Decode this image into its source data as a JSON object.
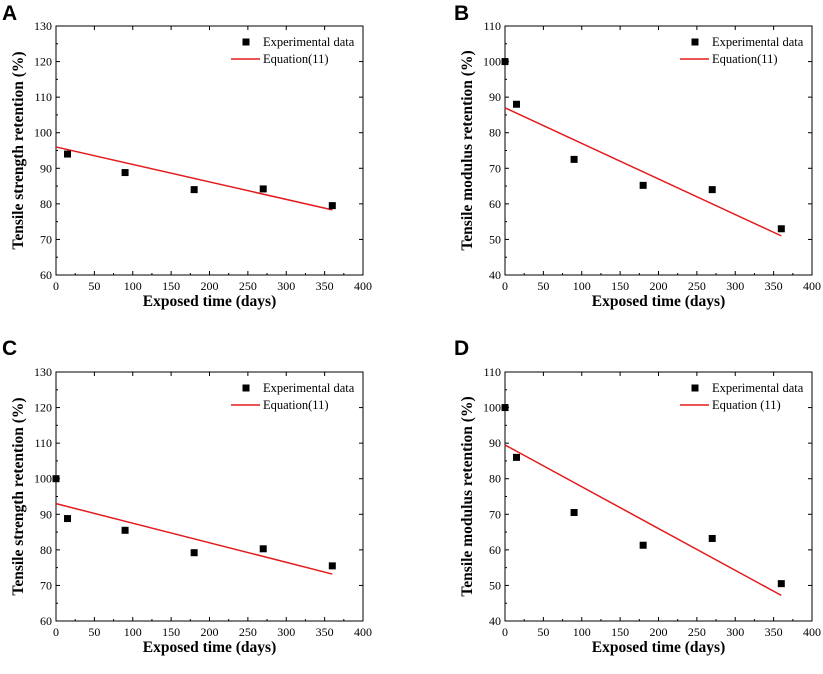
{
  "colors": {
    "fit": "#e41a1c",
    "marker": "#000000",
    "axes": "#000000"
  },
  "chart_data": [
    {
      "panel": "A",
      "type": "scatter",
      "xlabel": "Exposed time (days)",
      "ylabel": "Tensile strength retention (%)",
      "xlim": [
        0,
        400
      ],
      "ylim": [
        60,
        130
      ],
      "xticks": [
        0,
        50,
        100,
        150,
        200,
        250,
        300,
        350,
        400
      ],
      "yticks": [
        60,
        70,
        80,
        90,
        100,
        110,
        120,
        130
      ],
      "legend": [
        "Experimental data",
        "Equation(11)"
      ],
      "legend_position": "top-right",
      "series": [
        {
          "name": "Experimental data",
          "x": [
            15,
            90,
            180,
            270,
            360
          ],
          "y": [
            94,
            88.8,
            84,
            84.2,
            79.5
          ]
        },
        {
          "name": "Equation(11)",
          "x": [
            0,
            360
          ],
          "y": [
            96,
            78.3
          ]
        }
      ]
    },
    {
      "panel": "B",
      "type": "scatter",
      "xlabel": "Exposed time (days)",
      "ylabel": "Tensile modulus retention (%)",
      "xlim": [
        0,
        400
      ],
      "ylim": [
        40,
        110
      ],
      "xticks": [
        0,
        50,
        100,
        150,
        200,
        250,
        300,
        350,
        400
      ],
      "yticks": [
        40,
        50,
        60,
        70,
        80,
        90,
        100,
        110
      ],
      "legend": [
        "Experimental data",
        "Equation(11)"
      ],
      "legend_position": "top-right",
      "series": [
        {
          "name": "Experimental data",
          "x": [
            0,
            15,
            90,
            180,
            270,
            360
          ],
          "y": [
            100,
            88,
            72.5,
            65.2,
            64,
            53
          ]
        },
        {
          "name": "Equation(11)",
          "x": [
            0,
            360
          ],
          "y": [
            87,
            51
          ]
        }
      ]
    },
    {
      "panel": "C",
      "type": "scatter",
      "xlabel": "Exposed time (days)",
      "ylabel": "Tensile strength retention (%)",
      "xlim": [
        0,
        400
      ],
      "ylim": [
        60,
        130
      ],
      "xticks": [
        0,
        50,
        100,
        150,
        200,
        250,
        300,
        350,
        400
      ],
      "yticks": [
        60,
        70,
        80,
        90,
        100,
        110,
        120,
        130
      ],
      "legend": [
        "Experimental data",
        "Equation(11)"
      ],
      "legend_position": "top-right",
      "series": [
        {
          "name": "Experimental data",
          "x": [
            0,
            15,
            90,
            180,
            270,
            360
          ],
          "y": [
            100,
            88.8,
            85.5,
            79.2,
            80.3,
            75.5
          ]
        },
        {
          "name": "Equation(11)",
          "x": [
            0,
            360
          ],
          "y": [
            93,
            73.2
          ]
        }
      ]
    },
    {
      "panel": "D",
      "type": "scatter",
      "xlabel": "Exposed time (days)",
      "ylabel": "Tensile modulus retention (%)",
      "xlim": [
        0,
        400
      ],
      "ylim": [
        40,
        110
      ],
      "xticks": [
        0,
        50,
        100,
        150,
        200,
        250,
        300,
        350,
        400
      ],
      "yticks": [
        40,
        50,
        60,
        70,
        80,
        90,
        100,
        110
      ],
      "legend": [
        "Experimental data",
        "Equation (11)"
      ],
      "legend_position": "top-right",
      "series": [
        {
          "name": "Experimental data",
          "x": [
            0,
            15,
            90,
            180,
            270,
            360
          ],
          "y": [
            100,
            86,
            70.5,
            61.3,
            63.2,
            50.5
          ]
        },
        {
          "name": "Equation (11)",
          "x": [
            0,
            360
          ],
          "y": [
            89.5,
            47.2
          ]
        }
      ]
    }
  ]
}
